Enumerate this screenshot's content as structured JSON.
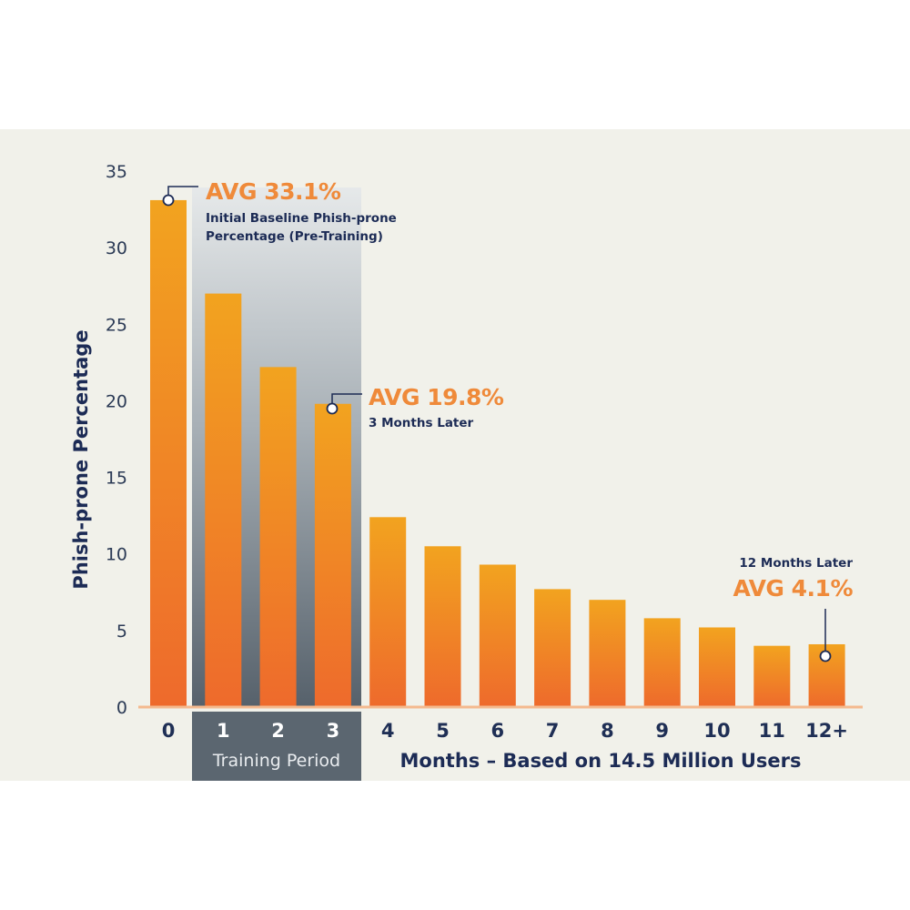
{
  "chart_data": {
    "type": "bar",
    "categories": [
      "0",
      "1",
      "2",
      "3",
      "4",
      "5",
      "6",
      "7",
      "8",
      "9",
      "10",
      "11",
      "12+"
    ],
    "values": [
      33.1,
      27.0,
      22.2,
      19.8,
      12.4,
      10.5,
      9.3,
      7.7,
      7.0,
      5.8,
      5.2,
      4.0,
      4.1
    ],
    "xlabel": "Months – Based on 14.5 Million Users",
    "ylabel": "Phish-prone Percentage",
    "ylim": [
      0,
      35
    ],
    "yticks": [
      "0",
      "5",
      "10",
      "15",
      "20",
      "25",
      "30",
      "35"
    ],
    "grid": false,
    "training_period": {
      "label": "Training Period",
      "categories": [
        "1",
        "2",
        "3"
      ]
    },
    "annotations": [
      {
        "category": "0",
        "value": 33.1,
        "headline": "AVG 33.1%",
        "lines": [
          "Initial Baseline Phish-prone",
          "Percentage (Pre-Training)"
        ]
      },
      {
        "category": "3",
        "value": 19.8,
        "headline": "AVG 19.8%",
        "lines": [
          "3 Months Later"
        ]
      },
      {
        "category": "12+",
        "value": 4.1,
        "headline": "AVG 4.1%",
        "lines": [
          "12 Months Later"
        ]
      }
    ],
    "colors": {
      "bar_top": "#f2a31f",
      "bar_bottom": "#ee6a2c",
      "accent_text": "#ef8a3a",
      "navy": "#1c2b55",
      "baseline": "#f4b98e",
      "training_band_top": "#dfe3e6",
      "training_band_bottom": "#5b6670",
      "panel_bg": "#f1f1ea"
    }
  }
}
